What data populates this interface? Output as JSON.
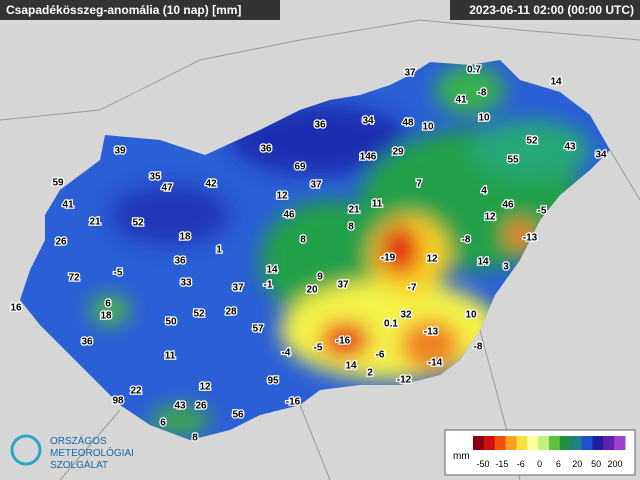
{
  "header": {
    "title": "Csapadékösszeg-anomália (10 nap) [mm]",
    "timestamp": "2023-06-11 02:00 (00:00 UTC)"
  },
  "stations": [
    37,
    0.7,
    14,
    41,
    -8,
    10,
    36,
    34,
    48,
    10,
    52,
    43,
    34,
    39,
    36,
    69,
    146,
    29,
    55,
    59,
    35,
    47,
    42,
    37,
    7,
    4,
    41,
    21,
    52,
    12,
    46,
    21,
    11,
    46,
    -5,
    26,
    18,
    1,
    8,
    8,
    12,
    -8,
    -13,
    -5,
    72,
    36,
    -19,
    12,
    14,
    3,
    14,
    -1,
    9,
    20,
    37,
    -7,
    33,
    37,
    16,
    6,
    18,
    50,
    52,
    28,
    32,
    10,
    0.1,
    -13,
    57,
    36,
    -4,
    -5,
    -16,
    -6,
    -8,
    11,
    14,
    -14,
    2,
    -12,
    12,
    95,
    22,
    98,
    43,
    26,
    56,
    -16,
    6,
    8
  ],
  "legend": {
    "unit": "mm",
    "ticks": [
      -50,
      -15,
      -6,
      0,
      6,
      20,
      50,
      200
    ]
  },
  "logo": {
    "line1": "ORSZÁGOS",
    "line2": "METEOROLÓGIAI",
    "line3": "SZOLGÁLAT"
  }
}
